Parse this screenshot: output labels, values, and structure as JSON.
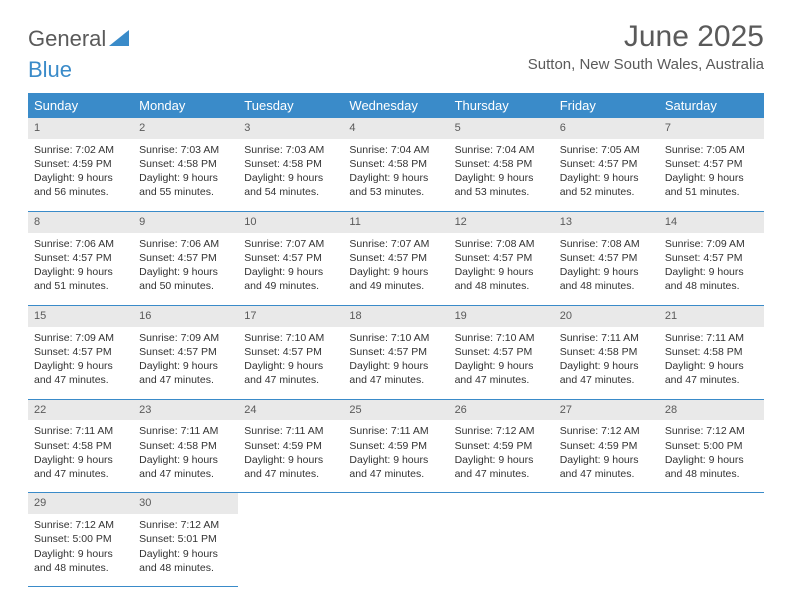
{
  "brand": {
    "text1": "General",
    "text2": "Blue"
  },
  "title": "June 2025",
  "subtitle": "Sutton, New South Wales, Australia",
  "colors": {
    "header_bg": "#3a8bc9",
    "header_text": "#ffffff",
    "daynum_bg": "#e9e9e9",
    "daynum_text": "#5a5a5a",
    "body_text": "#333333",
    "rule": "#3a8bc9",
    "page_bg": "#ffffff"
  },
  "weekdays": [
    "Sunday",
    "Monday",
    "Tuesday",
    "Wednesday",
    "Thursday",
    "Friday",
    "Saturday"
  ],
  "days": [
    {
      "n": "1",
      "sunrise": "7:02 AM",
      "sunset": "4:59 PM",
      "dlh": "9",
      "dlm": "56"
    },
    {
      "n": "2",
      "sunrise": "7:03 AM",
      "sunset": "4:58 PM",
      "dlh": "9",
      "dlm": "55"
    },
    {
      "n": "3",
      "sunrise": "7:03 AM",
      "sunset": "4:58 PM",
      "dlh": "9",
      "dlm": "54"
    },
    {
      "n": "4",
      "sunrise": "7:04 AM",
      "sunset": "4:58 PM",
      "dlh": "9",
      "dlm": "53"
    },
    {
      "n": "5",
      "sunrise": "7:04 AM",
      "sunset": "4:58 PM",
      "dlh": "9",
      "dlm": "53"
    },
    {
      "n": "6",
      "sunrise": "7:05 AM",
      "sunset": "4:57 PM",
      "dlh": "9",
      "dlm": "52"
    },
    {
      "n": "7",
      "sunrise": "7:05 AM",
      "sunset": "4:57 PM",
      "dlh": "9",
      "dlm": "51"
    },
    {
      "n": "8",
      "sunrise": "7:06 AM",
      "sunset": "4:57 PM",
      "dlh": "9",
      "dlm": "51"
    },
    {
      "n": "9",
      "sunrise": "7:06 AM",
      "sunset": "4:57 PM",
      "dlh": "9",
      "dlm": "50"
    },
    {
      "n": "10",
      "sunrise": "7:07 AM",
      "sunset": "4:57 PM",
      "dlh": "9",
      "dlm": "49"
    },
    {
      "n": "11",
      "sunrise": "7:07 AM",
      "sunset": "4:57 PM",
      "dlh": "9",
      "dlm": "49"
    },
    {
      "n": "12",
      "sunrise": "7:08 AM",
      "sunset": "4:57 PM",
      "dlh": "9",
      "dlm": "48"
    },
    {
      "n": "13",
      "sunrise": "7:08 AM",
      "sunset": "4:57 PM",
      "dlh": "9",
      "dlm": "48"
    },
    {
      "n": "14",
      "sunrise": "7:09 AM",
      "sunset": "4:57 PM",
      "dlh": "9",
      "dlm": "48"
    },
    {
      "n": "15",
      "sunrise": "7:09 AM",
      "sunset": "4:57 PM",
      "dlh": "9",
      "dlm": "47"
    },
    {
      "n": "16",
      "sunrise": "7:09 AM",
      "sunset": "4:57 PM",
      "dlh": "9",
      "dlm": "47"
    },
    {
      "n": "17",
      "sunrise": "7:10 AM",
      "sunset": "4:57 PM",
      "dlh": "9",
      "dlm": "47"
    },
    {
      "n": "18",
      "sunrise": "7:10 AM",
      "sunset": "4:57 PM",
      "dlh": "9",
      "dlm": "47"
    },
    {
      "n": "19",
      "sunrise": "7:10 AM",
      "sunset": "4:57 PM",
      "dlh": "9",
      "dlm": "47"
    },
    {
      "n": "20",
      "sunrise": "7:11 AM",
      "sunset": "4:58 PM",
      "dlh": "9",
      "dlm": "47"
    },
    {
      "n": "21",
      "sunrise": "7:11 AM",
      "sunset": "4:58 PM",
      "dlh": "9",
      "dlm": "47"
    },
    {
      "n": "22",
      "sunrise": "7:11 AM",
      "sunset": "4:58 PM",
      "dlh": "9",
      "dlm": "47"
    },
    {
      "n": "23",
      "sunrise": "7:11 AM",
      "sunset": "4:58 PM",
      "dlh": "9",
      "dlm": "47"
    },
    {
      "n": "24",
      "sunrise": "7:11 AM",
      "sunset": "4:59 PM",
      "dlh": "9",
      "dlm": "47"
    },
    {
      "n": "25",
      "sunrise": "7:11 AM",
      "sunset": "4:59 PM",
      "dlh": "9",
      "dlm": "47"
    },
    {
      "n": "26",
      "sunrise": "7:12 AM",
      "sunset": "4:59 PM",
      "dlh": "9",
      "dlm": "47"
    },
    {
      "n": "27",
      "sunrise": "7:12 AM",
      "sunset": "4:59 PM",
      "dlh": "9",
      "dlm": "47"
    },
    {
      "n": "28",
      "sunrise": "7:12 AM",
      "sunset": "5:00 PM",
      "dlh": "9",
      "dlm": "48"
    },
    {
      "n": "29",
      "sunrise": "7:12 AM",
      "sunset": "5:00 PM",
      "dlh": "9",
      "dlm": "48"
    },
    {
      "n": "30",
      "sunrise": "7:12 AM",
      "sunset": "5:01 PM",
      "dlh": "9",
      "dlm": "48"
    }
  ],
  "labels": {
    "sunrise": "Sunrise:",
    "sunset": "Sunset:",
    "daylight": "Daylight:",
    "hours": "hours",
    "and": "and",
    "minutes": "minutes."
  }
}
